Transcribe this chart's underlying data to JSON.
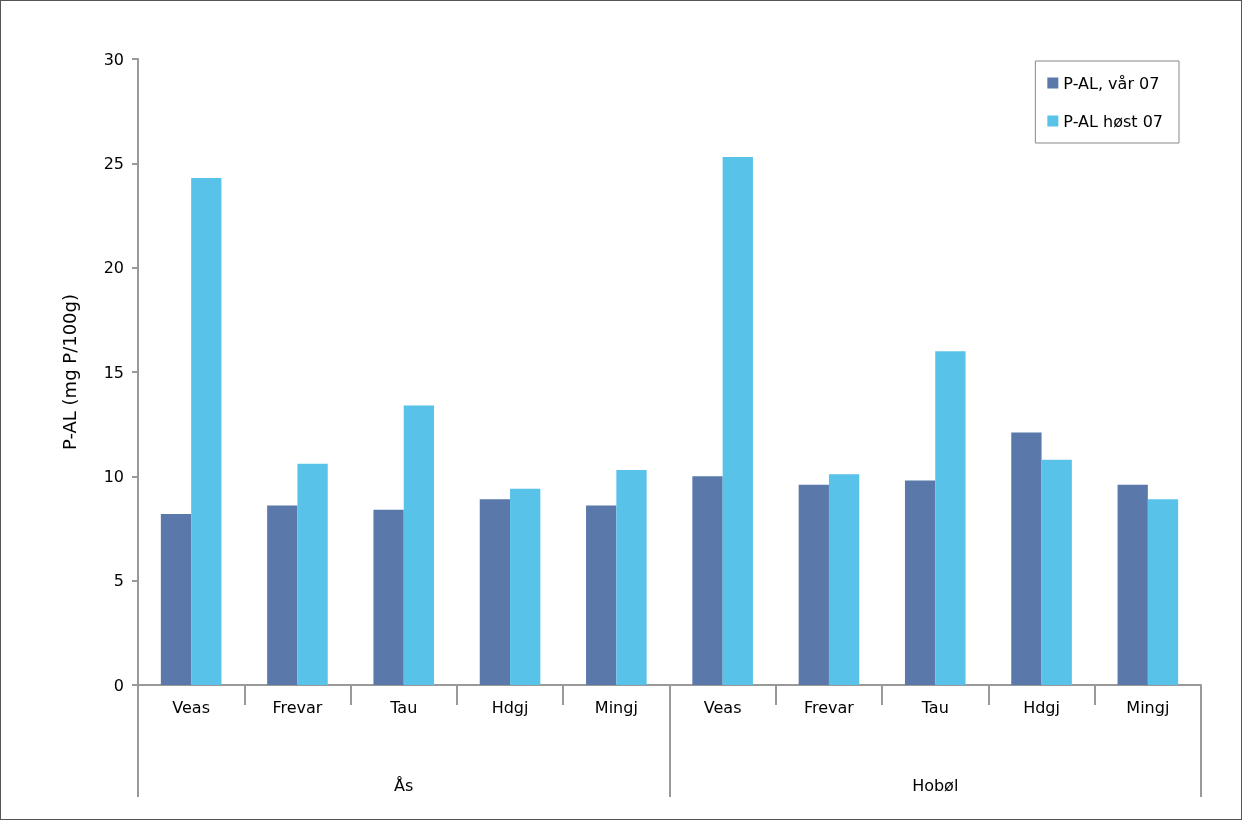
{
  "chart_data": {
    "type": "bar",
    "ylabel": "P-AL (mg P/100g)",
    "categories": [
      "Veas",
      "Frevar",
      "Tau",
      "Hdgj",
      "Mingj",
      "Veas",
      "Frevar",
      "Tau",
      "Hdgj",
      "Mingj"
    ],
    "series": [
      {
        "name": "P-AL, vår 07",
        "color": "#5a78aa",
        "values": [
          8.2,
          8.6,
          8.4,
          8.9,
          8.6,
          10.0,
          9.6,
          9.8,
          12.1,
          9.6
        ]
      },
      {
        "name": "P-AL høst 07",
        "color": "#59c2e8",
        "values": [
          24.3,
          10.6,
          13.4,
          9.4,
          10.3,
          25.3,
          10.1,
          16.0,
          10.8,
          8.9
        ]
      }
    ],
    "annotations": [
      "Ås",
      "Hobøl"
    ],
    "ylim": [
      0,
      30
    ],
    "yticks": [
      0,
      5,
      10,
      15,
      20,
      25,
      30
    ],
    "grid": false,
    "legend": "top right"
  }
}
